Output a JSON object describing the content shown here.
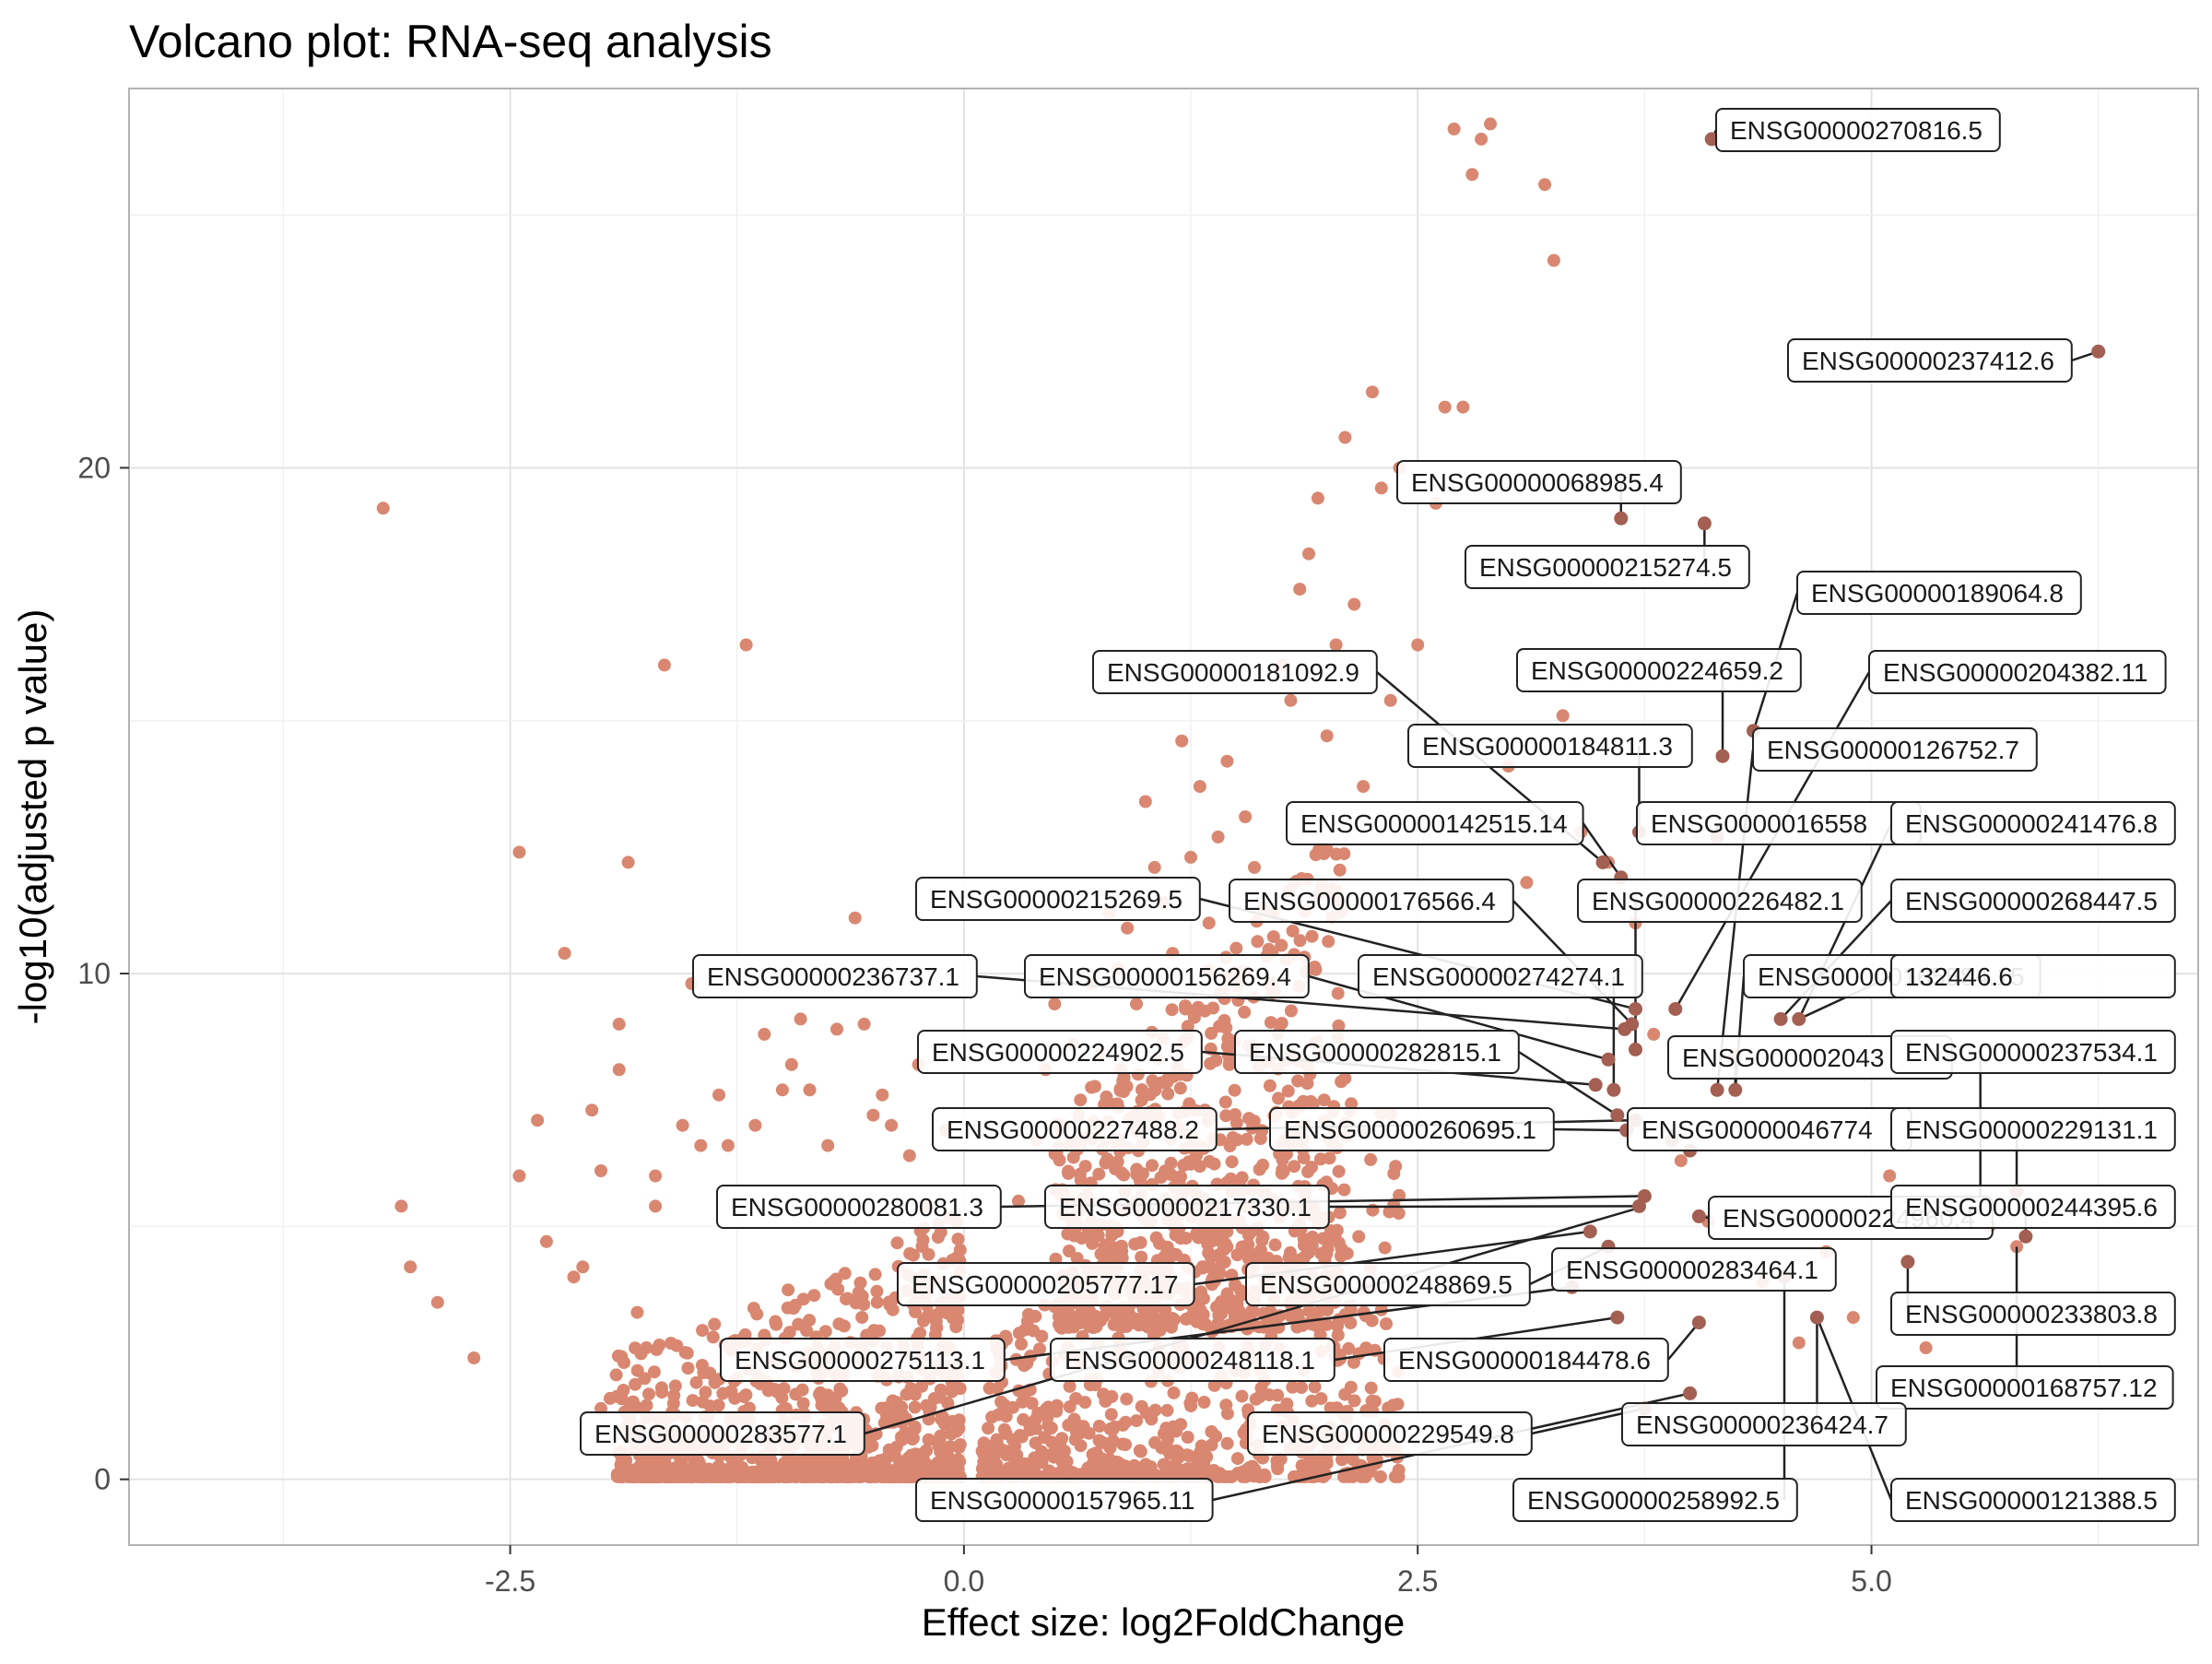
{
  "chart_data": {
    "type": "scatter",
    "title": "Volcano plot: RNA-seq analysis",
    "xlabel": "Effect size: log2FoldChange",
    "ylabel": "-log10(adjusted p value)",
    "xlim": [
      -4.6,
      6.8
    ],
    "ylim": [
      -1.3,
      27.5
    ],
    "x_ticks": [
      {
        "value": -2.5,
        "label": "-2.5"
      },
      {
        "value": 0.0,
        "label": "0.0"
      },
      {
        "value": 2.5,
        "label": "2.5"
      },
      {
        "value": 5.0,
        "label": "5.0"
      }
    ],
    "y_ticks": [
      {
        "value": 0,
        "label": "0"
      },
      {
        "value": 10,
        "label": "10"
      },
      {
        "value": 20,
        "label": "20"
      }
    ],
    "grid": true,
    "colors": {
      "background_point": "#d98771",
      "highlight_point": "#a35f52",
      "panel_border": "#b3b3b3",
      "grid_major": "#e3e3e3",
      "grid_minor": "#f1f1f1",
      "connector": "#222222",
      "label_fill": "#ffffff",
      "label_border": "#222222"
    },
    "background_points": [
      [
        -3.2,
        19.2
      ],
      [
        -3.1,
        5.4
      ],
      [
        -3.05,
        4.2
      ],
      [
        -2.9,
        3.5
      ],
      [
        -2.7,
        2.4
      ],
      [
        -2.45,
        12.4
      ],
      [
        -2.45,
        6.0
      ],
      [
        -2.35,
        7.1
      ],
      [
        -2.3,
        4.7
      ],
      [
        -2.2,
        10.4
      ],
      [
        -2.15,
        4.0
      ],
      [
        -2.1,
        4.2
      ],
      [
        -2.05,
        7.3
      ],
      [
        -2.0,
        6.1
      ],
      [
        -2.0,
        1.4
      ],
      [
        -1.95,
        1.6
      ],
      [
        -1.9,
        8.1
      ],
      [
        -1.9,
        9.0
      ],
      [
        -1.85,
        12.2
      ],
      [
        -1.8,
        3.3
      ],
      [
        -1.75,
        2.6
      ],
      [
        -1.7,
        6.0
      ],
      [
        -1.7,
        5.4
      ],
      [
        -1.65,
        16.1
      ],
      [
        -1.6,
        1.5
      ],
      [
        -1.55,
        7.0
      ],
      [
        -1.5,
        9.8
      ],
      [
        -1.45,
        6.6
      ],
      [
        -1.4,
        2.1
      ],
      [
        -1.35,
        7.6
      ],
      [
        -1.3,
        6.6
      ],
      [
        -1.25,
        2.0
      ],
      [
        -1.2,
        16.5
      ],
      [
        -1.15,
        7.0
      ],
      [
        -1.1,
        8.8
      ],
      [
        -1.0,
        7.7
      ],
      [
        -0.95,
        8.2
      ],
      [
        -0.9,
        9.1
      ],
      [
        -0.85,
        7.7
      ],
      [
        -0.8,
        2.0
      ],
      [
        -0.75,
        6.6
      ],
      [
        -0.7,
        8.9
      ],
      [
        -0.6,
        11.1
      ],
      [
        -0.55,
        9.0
      ],
      [
        -0.5,
        7.2
      ],
      [
        -0.45,
        7.6
      ],
      [
        -0.4,
        7.0
      ],
      [
        -0.3,
        6.4
      ],
      [
        -0.25,
        8.2
      ],
      [
        -0.2,
        5.4
      ],
      [
        -0.15,
        3.0
      ],
      [
        -0.1,
        6.9
      ],
      [
        0.3,
        5.5
      ],
      [
        0.4,
        6.7
      ],
      [
        0.45,
        8.1
      ],
      [
        0.5,
        9.4
      ],
      [
        0.55,
        7.0
      ],
      [
        0.6,
        8.6
      ],
      [
        0.7,
        9.8
      ],
      [
        0.75,
        8.4
      ],
      [
        0.8,
        11.2
      ],
      [
        0.85,
        10.1
      ],
      [
        0.9,
        10.9
      ],
      [
        0.95,
        9.4
      ],
      [
        1.0,
        13.4
      ],
      [
        1.05,
        12.1
      ],
      [
        1.1,
        11.4
      ],
      [
        1.15,
        10.4
      ],
      [
        1.2,
        14.6
      ],
      [
        1.25,
        12.3
      ],
      [
        1.3,
        13.7
      ],
      [
        1.35,
        11.0
      ],
      [
        1.4,
        12.7
      ],
      [
        1.45,
        14.2
      ],
      [
        1.5,
        10.5
      ],
      [
        1.55,
        13.1
      ],
      [
        1.6,
        12.1
      ],
      [
        1.65,
        11.3
      ],
      [
        1.7,
        9.8
      ],
      [
        1.75,
        16.1
      ],
      [
        1.8,
        15.4
      ],
      [
        1.85,
        17.6
      ],
      [
        1.9,
        18.3
      ],
      [
        1.95,
        19.4
      ],
      [
        2.0,
        14.7
      ],
      [
        2.05,
        16.5
      ],
      [
        2.1,
        20.6
      ],
      [
        2.15,
        17.3
      ],
      [
        2.2,
        13.7
      ],
      [
        2.25,
        21.5
      ],
      [
        2.3,
        19.6
      ],
      [
        2.35,
        15.4
      ],
      [
        2.4,
        20.0
      ],
      [
        2.5,
        16.5
      ],
      [
        2.6,
        19.3
      ],
      [
        2.65,
        21.2
      ],
      [
        2.7,
        26.7
      ],
      [
        2.75,
        21.2
      ],
      [
        2.8,
        25.8
      ],
      [
        2.85,
        26.5
      ],
      [
        2.9,
        26.8
      ],
      [
        3.0,
        14.1
      ],
      [
        3.1,
        11.8
      ],
      [
        3.2,
        25.6
      ],
      [
        3.25,
        24.1
      ],
      [
        3.3,
        15.1
      ],
      [
        3.4,
        12.8
      ],
      [
        3.55,
        12.2
      ],
      [
        3.7,
        11.0
      ],
      [
        3.8,
        8.8
      ],
      [
        3.95,
        6.3
      ],
      [
        4.1,
        5.1
      ],
      [
        4.25,
        8.4
      ],
      [
        4.4,
        3.9
      ],
      [
        4.6,
        2.7
      ],
      [
        4.75,
        4.5
      ],
      [
        4.9,
        3.2
      ],
      [
        5.1,
        6.0
      ],
      [
        5.3,
        2.6
      ],
      [
        5.5,
        5.3
      ],
      [
        5.65,
        5.0
      ],
      [
        5.8,
        4.6
      ]
    ],
    "highlight_points": [
      [
        4.12,
        26.5
      ],
      [
        6.25,
        22.3
      ],
      [
        3.62,
        19.0
      ],
      [
        4.08,
        18.9
      ],
      [
        4.18,
        14.3
      ],
      [
        4.35,
        14.8
      ],
      [
        3.72,
        12.8
      ],
      [
        4.15,
        12.7
      ],
      [
        3.52,
        12.2
      ],
      [
        3.62,
        11.9
      ],
      [
        3.7,
        9.3
      ],
      [
        3.92,
        9.3
      ],
      [
        3.68,
        9.0
      ],
      [
        3.64,
        8.9
      ],
      [
        4.5,
        9.1
      ],
      [
        4.6,
        9.1
      ],
      [
        3.7,
        8.5
      ],
      [
        3.55,
        8.3
      ],
      [
        3.48,
        7.8
      ],
      [
        3.58,
        7.7
      ],
      [
        4.15,
        7.7
      ],
      [
        4.25,
        7.7
      ],
      [
        3.6,
        7.2
      ],
      [
        3.7,
        7.1
      ],
      [
        3.65,
        6.9
      ],
      [
        3.9,
        6.7
      ],
      [
        4.0,
        6.5
      ],
      [
        3.75,
        5.6
      ],
      [
        3.72,
        5.4
      ],
      [
        4.05,
        5.2
      ],
      [
        4.52,
        4.0
      ],
      [
        4.7,
        3.2
      ],
      [
        5.2,
        4.3
      ],
      [
        5.6,
        5.3
      ],
      [
        5.8,
        5.7
      ],
      [
        5.85,
        4.8
      ],
      [
        3.45,
        4.9
      ],
      [
        3.55,
        4.6
      ],
      [
        3.35,
        3.8
      ],
      [
        3.6,
        3.2
      ],
      [
        4.05,
        3.1
      ],
      [
        3.75,
        1.4
      ],
      [
        4.0,
        1.7
      ]
    ],
    "labels": [
      {
        "text": "ENSG00000270816.5",
        "x": 4.12,
        "y": 26.5
      },
      {
        "text": "ENSG00000237412.6",
        "x": 6.25,
        "y": 22.3
      },
      {
        "text": "ENSG00000068985.4",
        "x": 3.62,
        "y": 19.0
      },
      {
        "text": "ENSG00000215274.5",
        "x": 4.08,
        "y": 18.9
      },
      {
        "text": "ENSG00000189064.8",
        "x": 4.35,
        "y": 14.8
      },
      {
        "text": "ENSG00000224659.2",
        "x": 4.18,
        "y": 14.3
      },
      {
        "text": "ENSG00000181092.9",
        "x": 3.52,
        "y": 12.2
      },
      {
        "text": "ENSG00000204382.11",
        "x": 3.92,
        "y": 9.3
      },
      {
        "text": "ENSG00000184811.3",
        "x": 3.72,
        "y": 12.8
      },
      {
        "text": "ENSG00000126752.7",
        "x": 4.15,
        "y": 7.7
      },
      {
        "text": "ENSG00000142515.14",
        "x": 3.62,
        "y": 11.9
      },
      {
        "text": "ENSG0000016558",
        "x": 4.15,
        "y": 12.7
      },
      {
        "text": "ENSG00000241476.8",
        "x": 4.6,
        "y": 9.1
      },
      {
        "text": "ENSG00000215269.5",
        "x": 3.7,
        "y": 9.3
      },
      {
        "text": "ENSG00000176566.4",
        "x": 3.68,
        "y": 9.0
      },
      {
        "text": "ENSG00000226482.1",
        "x": 3.7,
        "y": 8.5
      },
      {
        "text": "ENSG00000268447.5",
        "x": 4.5,
        "y": 9.1
      },
      {
        "text": "ENSG00000236737.1",
        "x": 3.64,
        "y": 8.9
      },
      {
        "text": "ENSG00000156269.4",
        "x": 3.55,
        "y": 8.3
      },
      {
        "text": "ENSG00000274274.1",
        "x": 3.58,
        "y": 7.7
      },
      {
        "text": "ENSG00000165584.15",
        "x": 4.25,
        "y": 7.7
      },
      {
        "text": "132446.6",
        "x": 4.6,
        "y": 9.1
      },
      {
        "text": "ENSG00000224902.5",
        "x": 3.48,
        "y": 7.8
      },
      {
        "text": "ENSG00000282815.1",
        "x": 3.6,
        "y": 7.2
      },
      {
        "text": "ENSG000002043",
        "x": 4.25,
        "y": 7.7
      },
      {
        "text": "ENSG00000237534.1",
        "x": 5.6,
        "y": 5.3
      },
      {
        "text": "ENSG00000227488.2",
        "x": 3.7,
        "y": 7.1
      },
      {
        "text": "ENSG00000260695.1",
        "x": 3.65,
        "y": 6.9
      },
      {
        "text": "ENSG00000046774",
        "x": 3.9,
        "y": 6.7
      },
      {
        "text": "ENSG00000229131.1",
        "x": 5.8,
        "y": 5.7
      },
      {
        "text": "ENSG00000280081.3",
        "x": 3.75,
        "y": 5.6
      },
      {
        "text": "ENSG00000217330.1",
        "x": 3.72,
        "y": 5.4
      },
      {
        "text": "ENSG00000224960.4",
        "x": 4.05,
        "y": 5.2
      },
      {
        "text": "ENSG00000244395.6",
        "x": 5.85,
        "y": 4.8
      },
      {
        "text": "ENSG00000205777.17",
        "x": 3.45,
        "y": 4.9
      },
      {
        "text": "ENSG00000283464.1",
        "x": 4.52,
        "y": 4.0
      },
      {
        "text": "ENSG00000248869.5",
        "x": 3.55,
        "y": 4.6
      },
      {
        "text": "ENSG00000233803.8",
        "x": 5.2,
        "y": 4.3
      },
      {
        "text": "ENSG00000275113.1",
        "x": 3.35,
        "y": 3.8
      },
      {
        "text": "ENSG00000248118.1",
        "x": 3.6,
        "y": 3.2
      },
      {
        "text": "ENSG00000184478.6",
        "x": 4.05,
        "y": 3.1
      },
      {
        "text": "ENSG00000168757.12",
        "x": 5.8,
        "y": 4.6
      },
      {
        "text": "ENSG00000283577.1",
        "x": 3.75,
        "y": 5.4
      },
      {
        "text": "ENSG00000236424.7",
        "x": 4.7,
        "y": 3.2
      },
      {
        "text": "ENSG00000229549.8",
        "x": 3.75,
        "y": 1.4
      },
      {
        "text": "ENSG00000258992.5",
        "x": 4.52,
        "y": 4.0
      },
      {
        "text": "ENSG00000157965.11",
        "x": 4.0,
        "y": 1.7
      },
      {
        "text": "ENSG00000121388.5",
        "x": 4.7,
        "y": 3.2
      }
    ]
  }
}
